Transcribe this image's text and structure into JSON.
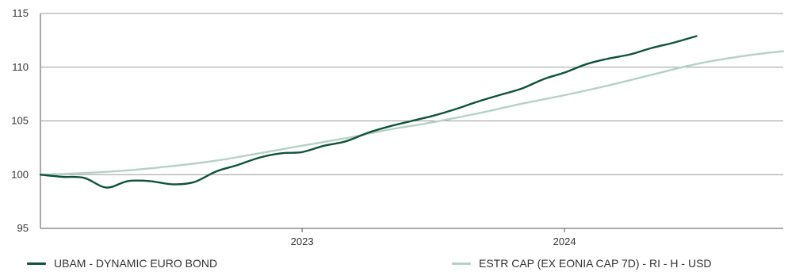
{
  "chart_data": {
    "type": "line",
    "title": "",
    "xlabel": "",
    "ylabel": "",
    "ylim": [
      95,
      115
    ],
    "yticks": [
      95,
      100,
      105,
      110,
      115
    ],
    "xlim": [
      "2022-03-01",
      "2024-12-31"
    ],
    "xticks": [
      {
        "label": "2023",
        "date": "2023-03-01"
      },
      {
        "label": "2024",
        "date": "2024-03-01"
      }
    ],
    "grid": true,
    "legend": "bottom",
    "series": [
      {
        "name": "UBAM - DYNAMIC EURO BOND",
        "color": "#0e5239",
        "points": [
          [
            "2022-03-01",
            100.0
          ],
          [
            "2022-04-01",
            99.8
          ],
          [
            "2022-05-01",
            99.7
          ],
          [
            "2022-06-01",
            98.8
          ],
          [
            "2022-07-01",
            99.4
          ],
          [
            "2022-08-01",
            99.4
          ],
          [
            "2022-09-01",
            99.1
          ],
          [
            "2022-10-01",
            99.3
          ],
          [
            "2022-11-01",
            100.3
          ],
          [
            "2022-12-01",
            100.9
          ],
          [
            "2023-01-01",
            101.6
          ],
          [
            "2023-02-01",
            102.0
          ],
          [
            "2023-03-01",
            102.1
          ],
          [
            "2023-04-01",
            102.7
          ],
          [
            "2023-05-01",
            103.1
          ],
          [
            "2023-06-01",
            103.9
          ],
          [
            "2023-07-01",
            104.5
          ],
          [
            "2023-08-01",
            105.0
          ],
          [
            "2023-09-01",
            105.5
          ],
          [
            "2023-10-01",
            106.1
          ],
          [
            "2023-11-01",
            106.8
          ],
          [
            "2023-12-01",
            107.4
          ],
          [
            "2024-01-01",
            108.0
          ],
          [
            "2024-02-01",
            108.9
          ],
          [
            "2024-03-01",
            109.5
          ],
          [
            "2024-04-01",
            110.3
          ],
          [
            "2024-05-01",
            110.8
          ],
          [
            "2024-06-01",
            111.2
          ],
          [
            "2024-07-01",
            111.8
          ],
          [
            "2024-08-01",
            112.3
          ],
          [
            "2024-09-01",
            112.9
          ]
        ]
      },
      {
        "name": "ESTR CAP (EX EONIA CAP 7D) - RI - H  - USD",
        "color": "#b5d1c5",
        "points": [
          [
            "2022-03-01",
            100.0
          ],
          [
            "2022-05-01",
            100.15
          ],
          [
            "2022-07-01",
            100.4
          ],
          [
            "2022-09-01",
            100.8
          ],
          [
            "2022-11-01",
            101.3
          ],
          [
            "2023-01-01",
            102.0
          ],
          [
            "2023-03-01",
            102.7
          ],
          [
            "2023-05-01",
            103.4
          ],
          [
            "2023-07-01",
            104.2
          ],
          [
            "2023-09-01",
            104.9
          ],
          [
            "2023-11-01",
            105.7
          ],
          [
            "2024-01-01",
            106.6
          ],
          [
            "2024-03-01",
            107.4
          ],
          [
            "2024-05-01",
            108.3
          ],
          [
            "2024-07-01",
            109.3
          ],
          [
            "2024-09-01",
            110.3
          ],
          [
            "2024-11-01",
            111.0
          ],
          [
            "2024-12-31",
            111.5
          ]
        ]
      }
    ]
  }
}
